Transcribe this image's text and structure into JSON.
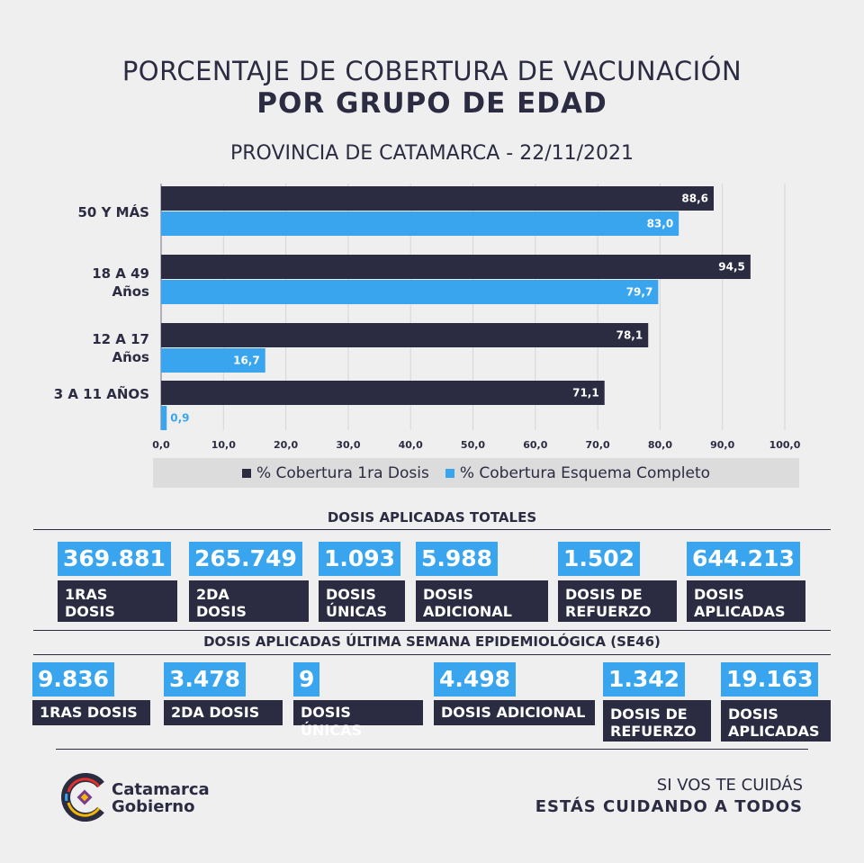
{
  "title_line1": "PORCENTAJE DE COBERTURA DE VACUNACIÓN",
  "title_line2": "POR GRUPO DE EDAD",
  "subtitle": "PROVINCIA DE CATAMARCA - 22/11/2021",
  "chart_data": {
    "type": "bar",
    "orientation": "horizontal",
    "categories": [
      "50 Y MÁS",
      "18 A 49\nAños",
      "12 A 17\nAños",
      "3 A 11 AÑOS"
    ],
    "series": [
      {
        "name": "% Cobertura 1ra Dosis",
        "values": [
          88.6,
          94.5,
          78.1,
          71.1
        ],
        "labels": [
          "88,6",
          "94,5",
          "78,1",
          "71,1"
        ],
        "color": "#2b2c42"
      },
      {
        "name": "% Cobertura Esquema Completo",
        "values": [
          83.0,
          79.7,
          16.7,
          0.9
        ],
        "labels": [
          "83,0",
          "79,7",
          "16,7",
          "0,9"
        ],
        "color": "#3aa5ef"
      }
    ],
    "xticks": [
      "0,0",
      "10,0",
      "20,0",
      "30,0",
      "40,0",
      "50,0",
      "60,0",
      "70,0",
      "80,0",
      "90,0",
      "100,0"
    ],
    "xlim": [
      0,
      100
    ],
    "grid": true,
    "legend": "bottom"
  },
  "totals": {
    "title": "DOSIS APLICADAS TOTALES",
    "items": [
      {
        "value": "369.881",
        "label": "1RAS\nDOSIS"
      },
      {
        "value": "265.749",
        "label": "2DA\nDOSIS"
      },
      {
        "value": "1.093",
        "label": "DOSIS\nÚNICAS"
      },
      {
        "value": "5.988",
        "label": "DOSIS\nADICIONAL"
      },
      {
        "value": "1.502",
        "label": "DOSIS DE\nREFUERZO"
      },
      {
        "value": "644.213",
        "label": "DOSIS\nAPLICADAS"
      }
    ]
  },
  "week": {
    "title": "DOSIS APLICADAS ÚLTIMA SEMANA EPIDEMIOLÓGICA (SE46)",
    "items": [
      {
        "value": "9.836",
        "label": "1RAS DOSIS"
      },
      {
        "value": "3.478",
        "label": "2DA DOSIS"
      },
      {
        "value": "9",
        "label": "DOSIS ÚNICAS"
      },
      {
        "value": "4.498",
        "label": "DOSIS ADICIONAL"
      },
      {
        "value": "1.342",
        "label": "DOSIS DE\nREFUERZO"
      },
      {
        "value": "19.163",
        "label": "DOSIS\nAPLICADAS"
      }
    ]
  },
  "footer": {
    "brand_line1": "Catamarca",
    "brand_line2": "Gobierno",
    "slogan_line1": "SI VOS TE CUIDÁS",
    "slogan_line2": "ESTÁS CUIDANDO A TODOS"
  },
  "colors": {
    "dark": "#2b2c42",
    "blue": "#3aa5ef",
    "background": "#efefef"
  }
}
